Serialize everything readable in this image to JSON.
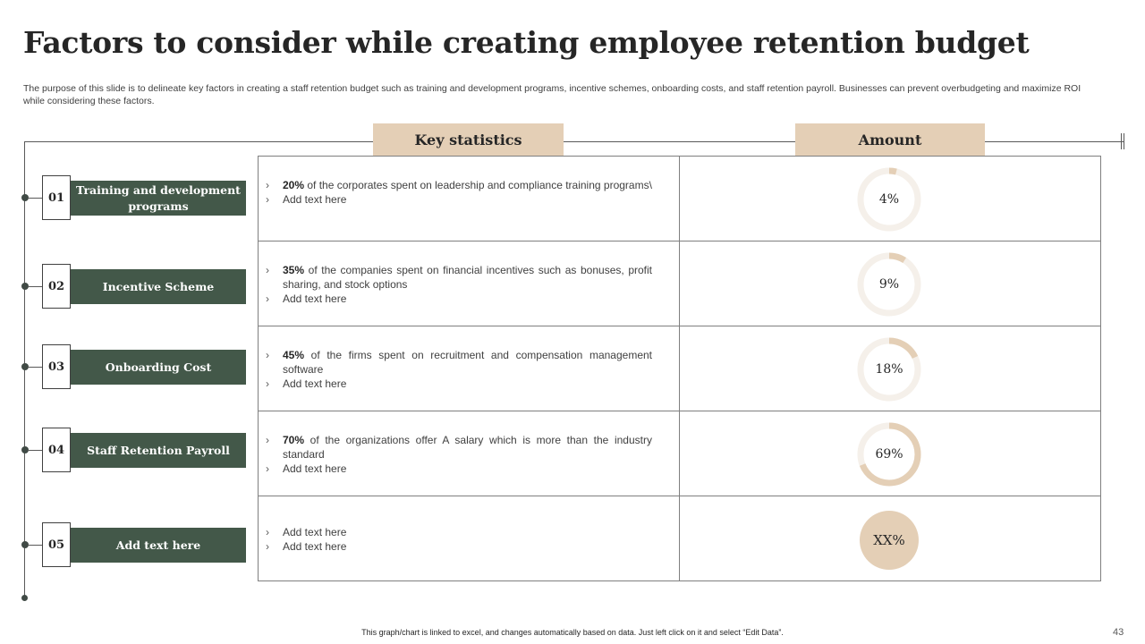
{
  "slide": {
    "title": "Factors to consider while creating employee retention budget",
    "subtitle": "The purpose of this slide is to delineate key factors in creating a staff retention budget such as training and development programs, incentive schemes, onboarding costs, and staff retention payroll. Businesses can prevent overbudgeting and maximize ROI while considering these factors.",
    "headers": {
      "stats": "Key statistics",
      "amount": "Amount"
    },
    "arrow_glyph": "›",
    "footer_note": "This graph/chart is linked to excel, and changes automatically based on data. Just left click on it and select “Edit Data”.",
    "page_number": "43"
  },
  "colors": {
    "accent_beige": "#e4cfb6",
    "track_beige": "#f5f0ea",
    "label_green": "#435849",
    "text_dark": "#262626"
  },
  "factors": [
    {
      "num": "01",
      "label": "Training and development programs"
    },
    {
      "num": "02",
      "label": "Incentive Scheme"
    },
    {
      "num": "03",
      "label": "Onboarding Cost"
    },
    {
      "num": "04",
      "label": "Staff Retention Payroll"
    },
    {
      "num": "05",
      "label": "Add text here"
    }
  ],
  "rows": [
    {
      "stat_bold": "20%",
      "stat_rest": " of the corporates spent on leadership and compliance training programs\\",
      "extra": "Add text here",
      "amount_label": "4%",
      "amount_value": 4
    },
    {
      "stat_bold": "35%",
      "stat_rest": " of the companies spent on financial incentives such as bonuses, profit sharing, and stock options",
      "extra": "Add text here",
      "amount_label": "9%",
      "amount_value": 9
    },
    {
      "stat_bold": "45%",
      "stat_rest": " of the firms spent on recruitment and compensation management software",
      "extra": "Add text here",
      "amount_label": "18%",
      "amount_value": 18
    },
    {
      "stat_bold": "70%",
      "stat_rest": " of the organizations offer A salary which is more than the industry standard",
      "extra": "Add text here",
      "amount_label": "69%",
      "amount_value": 69
    },
    {
      "line1": "Add text here",
      "extra": "Add text here",
      "amount_label": "XX%"
    }
  ]
}
